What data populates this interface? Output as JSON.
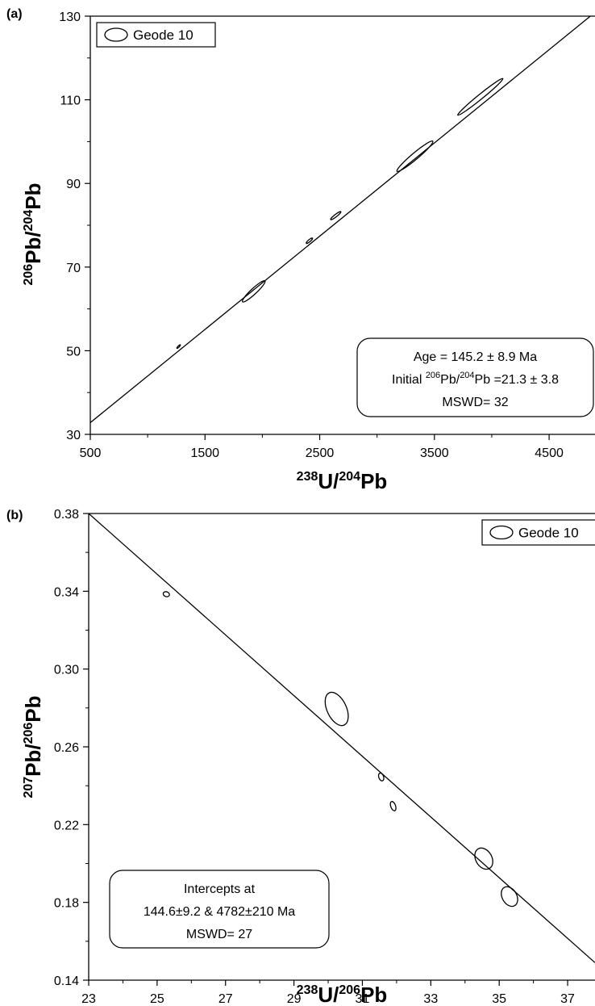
{
  "chart_data": [
    {
      "type": "scatter",
      "panel_label": "(a)",
      "xlabel": {
        "sup": "238",
        "main": "U/",
        "sup2": "204",
        "main2": "Pb"
      },
      "ylabel": {
        "sup": "206",
        "main": "Pb/",
        "sup2": "204",
        "main2": "Pb"
      },
      "xlim": [
        500,
        4900
      ],
      "ylim": [
        30,
        130
      ],
      "xticks": [
        500,
        1500,
        2500,
        3500,
        4500
      ],
      "yticks": [
        30,
        50,
        70,
        90,
        110,
        130
      ],
      "xminor": [
        1000,
        2000,
        3000,
        4000
      ],
      "yminor": [
        40,
        60,
        80,
        100,
        120
      ],
      "legend": {
        "label": "Geode 10",
        "position": "top-left"
      },
      "regression_line": {
        "x": [
          500,
          4900
        ],
        "y": [
          32.8,
          130.9
        ]
      },
      "ellipses": [
        {
          "x": 1270,
          "y": 51.0,
          "rx": 3,
          "ry": 0.8,
          "angle": -45
        },
        {
          "x": 1925,
          "y": 64.2,
          "rx": 19,
          "ry": 3.5,
          "angle": -43
        },
        {
          "x": 2410,
          "y": 76.3,
          "rx": 5,
          "ry": 1.3,
          "angle": -40
        },
        {
          "x": 2640,
          "y": 82.3,
          "rx": 8,
          "ry": 1.5,
          "angle": -38
        },
        {
          "x": 3330,
          "y": 96.5,
          "rx": 29,
          "ry": 4,
          "angle": -40
        },
        {
          "x": 3900,
          "y": 110.7,
          "rx": 36,
          "ry": 3,
          "angle": -39
        }
      ],
      "annotation": {
        "line1": "Age = 145.2 ± 8.9 Ma",
        "line2_pre": "Initial ",
        "line2_sup1": "206",
        "line2_mid": "Pb/",
        "line2_sup2": "204",
        "line2_post": "Pb =21.3 ± 3.8",
        "line3": "MSWD= 32"
      }
    },
    {
      "type": "scatter",
      "panel_label": "(b)",
      "xlabel": {
        "sup": "238",
        "main": "U/",
        "sup2": "206",
        "main2": "Pb"
      },
      "ylabel": {
        "sup": "207",
        "main": "Pb/",
        "sup2": "206",
        "main2": "Pb"
      },
      "xlim": [
        23,
        37.8
      ],
      "ylim": [
        0.14,
        0.38
      ],
      "xticks": [
        23,
        25,
        27,
        29,
        31,
        33,
        35,
        37
      ],
      "yticks": [
        0.14,
        0.18,
        0.22,
        0.26,
        0.3,
        0.34,
        0.38
      ],
      "xminor": [
        24,
        26,
        28,
        30,
        32,
        34,
        36
      ],
      "yminor": [
        0.16,
        0.2,
        0.24,
        0.28,
        0.32,
        0.36
      ],
      "legend": {
        "label": "Geode 10",
        "position": "top-right"
      },
      "regression_line": {
        "x": [
          23,
          37.8
        ],
        "y": [
          0.38,
          0.149
        ]
      },
      "ellipses": [
        {
          "x": 25.27,
          "y": 0.3385,
          "rx": 4,
          "ry": 3,
          "angle": 20
        },
        {
          "x": 30.25,
          "y": 0.2795,
          "rx": 12,
          "ry": 22,
          "angle": -25
        },
        {
          "x": 31.55,
          "y": 0.2445,
          "rx": 3,
          "ry": 5,
          "angle": -20
        },
        {
          "x": 31.9,
          "y": 0.2295,
          "rx": 3,
          "ry": 6,
          "angle": -20
        },
        {
          "x": 34.55,
          "y": 0.2025,
          "rx": 10,
          "ry": 14,
          "angle": -30
        },
        {
          "x": 35.3,
          "y": 0.183,
          "rx": 9,
          "ry": 13,
          "angle": -30
        }
      ],
      "annotation": {
        "line1": "Intercepts at",
        "line2": "144.6±9.2  & 4782±210 Ma",
        "line3": "MSWD= 27"
      }
    }
  ]
}
